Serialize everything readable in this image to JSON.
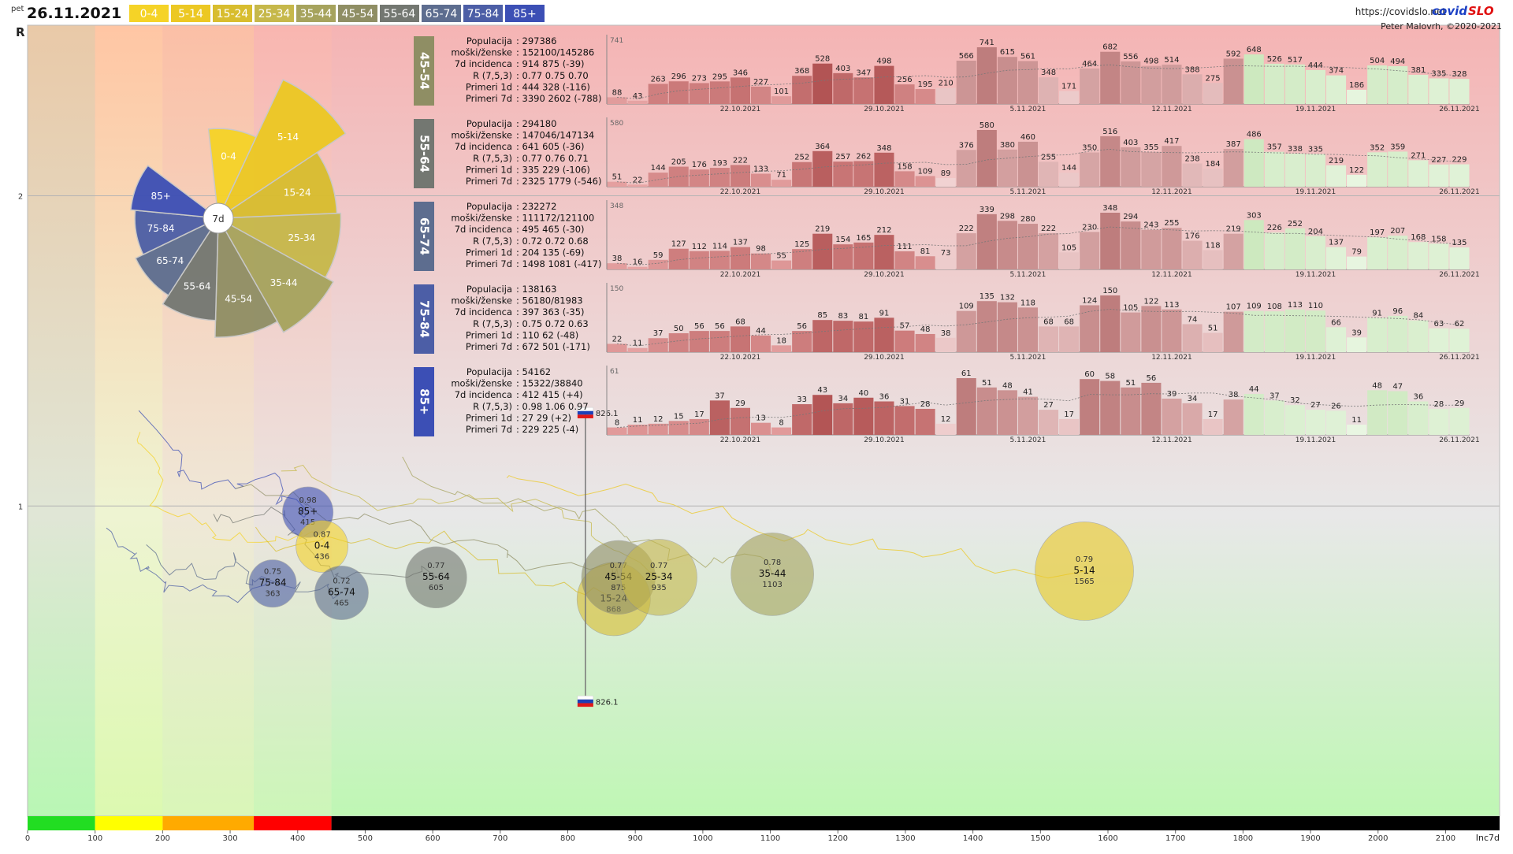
{
  "header": {
    "day": "pet",
    "date": "26.11.2021",
    "url": "https://covidslo.net",
    "brand_a": "covid",
    "brand_b": "SLO",
    "author": "Peter Malovrh, ©2020-2021",
    "y_axis_label": "R",
    "x_axis_label": "Inc7d"
  },
  "legend_groups": [
    {
      "label": "0-4",
      "color": "#f5d327"
    },
    {
      "label": "5-14",
      "color": "#ecc823"
    },
    {
      "label": "15-24",
      "color": "#d8bd2e"
    },
    {
      "label": "25-34",
      "color": "#c6b84a"
    },
    {
      "label": "35-44",
      "color": "#a6a35d"
    },
    {
      "label": "45-54",
      "color": "#8f8e64"
    },
    {
      "label": "55-64",
      "color": "#737771"
    },
    {
      "label": "65-74",
      "color": "#5d6d8f"
    },
    {
      "label": "75-84",
      "color": "#4c5ea6"
    },
    {
      "label": "85+",
      "color": "#3c4fb5"
    }
  ],
  "rose_center_label": "7d",
  "rose": [
    {
      "label": "0-4",
      "value": 436
    },
    {
      "label": "5-14",
      "value": 1565
    },
    {
      "label": "15-24",
      "value": 868
    },
    {
      "label": "25-34",
      "value": 935
    },
    {
      "label": "35-44",
      "value": 1103
    },
    {
      "label": "45-54",
      "value": 875
    },
    {
      "label": "55-64",
      "value": 605
    },
    {
      "label": "65-74",
      "value": 465
    },
    {
      "label": "75-84",
      "value": 363
    },
    {
      "label": "85+",
      "value": 415
    }
  ],
  "chart_data": {
    "type": "scatter",
    "title": "",
    "xlabel": "Inc7d",
    "ylabel": "R",
    "xlim": [
      0,
      2180
    ],
    "ylim": [
      0,
      2.55
    ],
    "x_ticks": [
      0,
      100,
      200,
      300,
      400,
      500,
      600,
      700,
      800,
      900,
      1000,
      1100,
      1200,
      1300,
      1400,
      1500,
      1600,
      1700,
      1800,
      1900,
      2000,
      2100
    ],
    "y_ticks": [
      1,
      2
    ],
    "incidence_bands": [
      {
        "from": 0,
        "to": 100,
        "color": "#22dd22"
      },
      {
        "from": 100,
        "to": 200,
        "color": "#ffff00"
      },
      {
        "from": 200,
        "to": 335,
        "color": "#ffaa00"
      },
      {
        "from": 335,
        "to": 450,
        "color": "#ff0000"
      },
      {
        "from": 450,
        "to": 2180,
        "color": "#000000"
      }
    ],
    "bubbles": [
      {
        "name": "85+",
        "r": "0.98",
        "inc": "415",
        "x": 415,
        "y": 0.98,
        "size": 415,
        "color": "#3c4fb5"
      },
      {
        "name": "0-4",
        "r": "0.87",
        "inc": "436",
        "x": 436,
        "y": 0.87,
        "size": 436,
        "color": "#f5d327"
      },
      {
        "name": "75-84",
        "r": "0.75",
        "inc": "363",
        "x": 363,
        "y": 0.75,
        "size": 363,
        "color": "#4c5ea6"
      },
      {
        "name": "65-74",
        "r": "0.72",
        "inc": "465",
        "x": 465,
        "y": 0.72,
        "size": 465,
        "color": "#5d6d8f"
      },
      {
        "name": "55-64",
        "r": "0.77",
        "inc": "605",
        "x": 605,
        "y": 0.77,
        "size": 605,
        "color": "#737771"
      },
      {
        "name": "15-24",
        "r": "",
        "inc": "868",
        "x": 868,
        "y": 0.7,
        "size": 868,
        "color": "#d8bd2e"
      },
      {
        "name": "45-54",
        "r": "0.77",
        "inc": "875",
        "x": 875,
        "y": 0.77,
        "size": 875,
        "color": "#8f8e64"
      },
      {
        "name": "25-34",
        "r": "0.77",
        "inc": "935",
        "x": 935,
        "y": 0.77,
        "size": 935,
        "color": "#c6b84a"
      },
      {
        "name": "35-44",
        "r": "0.78",
        "inc": "1103",
        "x": 1103,
        "y": 0.78,
        "size": 1103,
        "color": "#a6a35d"
      },
      {
        "name": "5-14",
        "r": "0.79",
        "inc": "1565",
        "x": 1565,
        "y": 0.79,
        "size": 1565,
        "color": "#ecc823"
      }
    ],
    "slovenia": {
      "label": "826.1",
      "x": 826.1,
      "y_top": 1.3,
      "y_bottom": 0.37
    },
    "dates": [
      "22.10.2021",
      "29.10.2021",
      "5.11.2021",
      "12.11.2021",
      "19.11.2021",
      "26.11.2021"
    ],
    "panels": [
      {
        "name": "45-54",
        "color": "#8f8e64",
        "ymax": "741",
        "rows": [
          [
            "Populacija",
            ": 297386"
          ],
          [
            "moški/ženske",
            ": 152100/145286"
          ],
          [
            "7d incidenca",
            ": 914 875 (-39)"
          ],
          [
            "R (7,5,3)",
            ": 0.77 0.75 0.70"
          ],
          [
            "Primeri 1d",
            ": 444 328 (-116)"
          ],
          [
            "Primeri 7d",
            ": 3390 2602 (-788)"
          ]
        ],
        "values": [
          88,
          43,
          263,
          296,
          273,
          295,
          346,
          227,
          101,
          368,
          528,
          403,
          347,
          498,
          256,
          195,
          210,
          566,
          741,
          615,
          561,
          348,
          171,
          464,
          682,
          556,
          498,
          514,
          388,
          275,
          592,
          648,
          526,
          517,
          444,
          374,
          186,
          504,
          494,
          381,
          335,
          328
        ]
      },
      {
        "name": "55-64",
        "color": "#737771",
        "ymax": "580",
        "rows": [
          [
            "Populacija",
            ": 294180"
          ],
          [
            "moški/ženske",
            ": 147046/147134"
          ],
          [
            "7d incidenca",
            ": 641 605 (-36)"
          ],
          [
            "R (7,5,3)",
            ": 0.77 0.76 0.71"
          ],
          [
            "Primeri 1d",
            ": 335 229 (-106)"
          ],
          [
            "Primeri 7d",
            ": 2325 1779 (-546)"
          ]
        ],
        "values": [
          51,
          22,
          144,
          205,
          176,
          193,
          222,
          133,
          71,
          252,
          364,
          257,
          262,
          348,
          158,
          109,
          89,
          376,
          580,
          380,
          460,
          255,
          144,
          350,
          516,
          403,
          355,
          417,
          238,
          184,
          387,
          486,
          357,
          338,
          335,
          219,
          122,
          352,
          359,
          271,
          227,
          229
        ]
      },
      {
        "name": "65-74",
        "color": "#5d6d8f",
        "ymax": "348",
        "rows": [
          [
            "Populacija",
            ": 232272"
          ],
          [
            "moški/ženske",
            ": 111172/121100"
          ],
          [
            "7d incidenca",
            ": 495 465 (-30)"
          ],
          [
            "R (7,5,3)",
            ": 0.72 0.72 0.68"
          ],
          [
            "Primeri 1d",
            ": 204 135 (-69)"
          ],
          [
            "Primeri 7d",
            ": 1498 1081 (-417)"
          ]
        ],
        "values": [
          38,
          16,
          59,
          127,
          112,
          114,
          137,
          98,
          55,
          125,
          219,
          154,
          165,
          212,
          111,
          81,
          73,
          222,
          339,
          298,
          280,
          222,
          105,
          230,
          348,
          294,
          243,
          255,
          176,
          118,
          219,
          303,
          226,
          252,
          204,
          137,
          79,
          197,
          207,
          168,
          158,
          135
        ]
      },
      {
        "name": "75-84",
        "color": "#4c5ea6",
        "ymax": "150",
        "rows": [
          [
            "Populacija",
            ": 138163"
          ],
          [
            "moški/ženske",
            ": 56180/81983"
          ],
          [
            "7d incidenca",
            ": 397 363 (-35)"
          ],
          [
            "R (7,5,3)",
            ": 0.75 0.72 0.63"
          ],
          [
            "Primeri 1d",
            ": 110 62 (-48)"
          ],
          [
            "Primeri 7d",
            ": 672 501 (-171)"
          ]
        ],
        "values": [
          22,
          11,
          37,
          50,
          56,
          56,
          68,
          44,
          18,
          56,
          85,
          83,
          81,
          91,
          57,
          48,
          38,
          109,
          135,
          132,
          118,
          68,
          68,
          124,
          150,
          105,
          122,
          113,
          74,
          51,
          107,
          109,
          108,
          113,
          110,
          66,
          39,
          91,
          96,
          84,
          63,
          62
        ]
      },
      {
        "name": "85+",
        "color": "#3c4fb5",
        "ymax": "61",
        "rows": [
          [
            "Populacija",
            ": 54162"
          ],
          [
            "moški/ženske",
            ": 15322/38840"
          ],
          [
            "7d incidenca",
            ": 412 415 (+4)"
          ],
          [
            "R (7,5,3)",
            ": 0.98 1.06 0.97"
          ],
          [
            "Primeri 1d",
            ": 27 29 (+2)"
          ],
          [
            "Primeri 7d",
            ": 229 225 (-4)"
          ]
        ],
        "values": [
          8,
          11,
          12,
          15,
          17,
          37,
          29,
          13,
          8,
          33,
          43,
          34,
          40,
          36,
          31,
          28,
          12,
          61,
          51,
          48,
          41,
          27,
          17,
          60,
          58,
          51,
          56,
          39,
          34,
          17,
          38,
          44,
          37,
          32,
          27,
          26,
          11,
          48,
          47,
          36,
          28,
          29
        ]
      }
    ]
  }
}
